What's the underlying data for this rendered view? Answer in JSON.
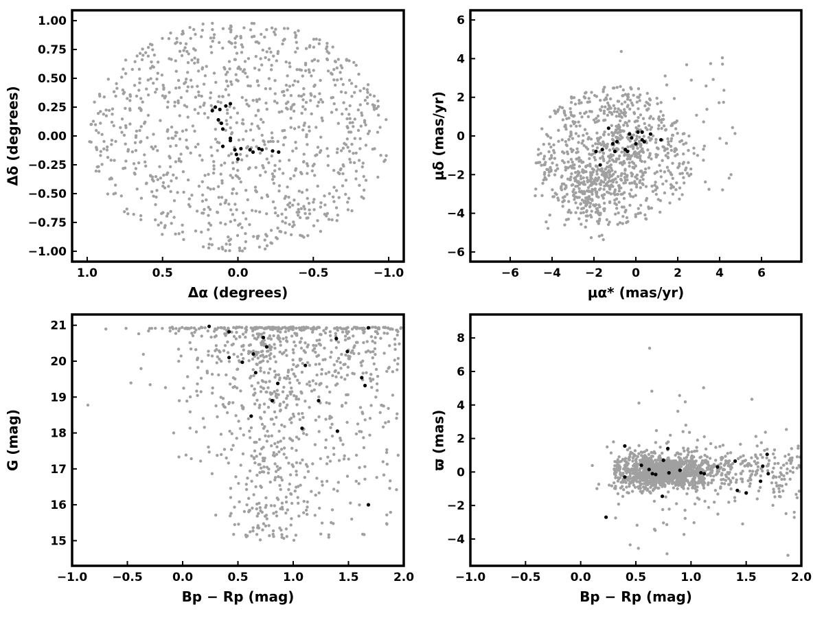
{
  "colors": {
    "field": "#a0a0a0",
    "members": "#000000",
    "frame": "#000000"
  },
  "chart_data": [
    {
      "id": "sky",
      "type": "scatter",
      "title": "",
      "xlabel": "Δα (degrees)",
      "ylabel": "Δδ (degrees)",
      "xlim": [
        1.1,
        -1.1
      ],
      "ylim": [
        -1.09,
        1.09
      ],
      "x_reversed": true,
      "xticks": [
        1.0,
        0.5,
        0.0,
        -0.5,
        -1.0
      ],
      "xtick_labels": [
        "1.0",
        "0.5",
        "0.0",
        "−0.5",
        "−1.0"
      ],
      "yticks": [
        -1.0,
        -0.75,
        -0.5,
        -0.25,
        0.0,
        0.25,
        0.5,
        0.75,
        1.0
      ],
      "ytick_labels": [
        "−1.00",
        "−0.75",
        "−0.50",
        "−0.25",
        "0.00",
        "0.25",
        "0.50",
        "0.75",
        "1.00"
      ],
      "grid": false,
      "field_distribution": {
        "shape": "disc",
        "center": [
          0,
          0
        ],
        "radius": 1.0,
        "approx_count": 1000
      },
      "members": [
        [
          0.17,
          0.22
        ],
        [
          0.15,
          0.25
        ],
        [
          0.12,
          0.23
        ],
        [
          0.08,
          0.26
        ],
        [
          0.05,
          0.28
        ],
        [
          0.13,
          0.14
        ],
        [
          0.11,
          0.11
        ],
        [
          0.1,
          0.06
        ],
        [
          0.1,
          -0.09
        ],
        [
          0.05,
          -0.02
        ],
        [
          0.05,
          -0.04
        ],
        [
          0.02,
          -0.12
        ],
        [
          0.01,
          -0.16
        ],
        [
          -0.02,
          -0.11
        ],
        [
          0.0,
          -0.2
        ],
        [
          -0.08,
          -0.12
        ],
        [
          -0.1,
          -0.14
        ],
        [
          -0.14,
          -0.11
        ],
        [
          -0.16,
          -0.12
        ],
        [
          -0.23,
          -0.13
        ],
        [
          -0.27,
          -0.14
        ]
      ]
    },
    {
      "id": "pm",
      "type": "scatter",
      "title": "",
      "xlabel": "μα* (mas/yr)",
      "ylabel": "μδ (mas/yr)",
      "xlim": [
        -7.9,
        7.9
      ],
      "ylim": [
        -6.5,
        6.5
      ],
      "xticks": [
        -6,
        -4,
        -2,
        0,
        2,
        4,
        6
      ],
      "xtick_labels": [
        "−6",
        "−4",
        "−2",
        "0",
        "2",
        "4",
        "6"
      ],
      "yticks": [
        -6,
        -4,
        -2,
        0,
        2,
        4,
        6
      ],
      "ytick_labels": [
        "−6",
        "−4",
        "−2",
        "0",
        "2",
        "4",
        "6"
      ],
      "grid": false,
      "field_distribution": {
        "shape": "disc-with-clump",
        "center": [
          -1.0,
          -1.0
        ],
        "radius": 3.8,
        "clump_center": [
          -2.0,
          -2.5
        ],
        "approx_count": 1000
      },
      "members": [
        [
          -1.9,
          -0.8
        ],
        [
          -1.6,
          -0.7
        ],
        [
          -1.7,
          -1.5
        ],
        [
          -1.1,
          -0.4
        ],
        [
          -1.0,
          -0.8
        ],
        [
          -0.9,
          -0.3
        ],
        [
          -0.5,
          -0.7
        ],
        [
          -0.3,
          0.1
        ],
        [
          -0.2,
          -0.1
        ],
        [
          0.1,
          0.2
        ],
        [
          0.3,
          -0.2
        ],
        [
          0.4,
          -0.3
        ],
        [
          0.3,
          0.2
        ],
        [
          0.7,
          0.1
        ],
        [
          1.2,
          -0.2
        ],
        [
          -0.4,
          -0.8
        ],
        [
          0.0,
          -0.4
        ],
        [
          -1.3,
          0.4
        ]
      ]
    },
    {
      "id": "cmd",
      "type": "scatter",
      "title": "",
      "xlabel": "Bp − Rp (mag)",
      "ylabel": "G (mag)",
      "xlim": [
        -1.0,
        2.0
      ],
      "ylim": [
        14.3,
        21.3
      ],
      "xticks": [
        -1.0,
        -0.5,
        0.0,
        0.5,
        1.0,
        1.5,
        2.0
      ],
      "xtick_labels": [
        "−1.0",
        "−0.5",
        "0.0",
        "0.5",
        "1.0",
        "1.5",
        "2.0"
      ],
      "yticks": [
        15,
        16,
        17,
        18,
        19,
        20,
        21
      ],
      "ytick_labels": [
        "15",
        "16",
        "17",
        "18",
        "19",
        "20",
        "21"
      ],
      "grid": false,
      "field_distribution": {
        "shape": "cmd-wedge",
        "approx_count": 1000
      },
      "members": [
        [
          0.24,
          20.97
        ],
        [
          0.42,
          20.82
        ],
        [
          0.42,
          20.1
        ],
        [
          0.54,
          19.97
        ],
        [
          0.64,
          20.2
        ],
        [
          0.66,
          19.68
        ],
        [
          0.73,
          20.66
        ],
        [
          0.76,
          20.4
        ],
        [
          0.81,
          18.9
        ],
        [
          0.86,
          19.38
        ],
        [
          0.62,
          18.47
        ],
        [
          1.11,
          19.88
        ],
        [
          1.23,
          18.9
        ],
        [
          1.08,
          18.13
        ],
        [
          1.39,
          20.63
        ],
        [
          1.49,
          20.27
        ],
        [
          1.4,
          18.05
        ],
        [
          1.62,
          19.54
        ],
        [
          1.65,
          19.32
        ],
        [
          1.68,
          20.93
        ],
        [
          1.68,
          16.0
        ]
      ]
    },
    {
      "id": "parallax",
      "type": "scatter",
      "title": "",
      "xlabel": "Bp − Rp (mag)",
      "ylabel": "ϖ (mas)",
      "xlim": [
        -1.0,
        2.0
      ],
      "ylim": [
        -5.6,
        9.4
      ],
      "xticks": [
        -1.0,
        -0.5,
        0.0,
        0.5,
        1.0,
        1.5,
        2.0
      ],
      "xtick_labels": [
        "−1.0",
        "−0.5",
        "0.0",
        "0.5",
        "1.0",
        "1.5",
        "2.0"
      ],
      "yticks": [
        -4,
        -2,
        0,
        2,
        4,
        6,
        8
      ],
      "ytick_labels": [
        "−4",
        "−2",
        "0",
        "2",
        "4",
        "6",
        "8"
      ],
      "grid": false,
      "field_distribution": {
        "shape": "horizontal-band",
        "center_y": 0.0,
        "approx_count": 1500
      },
      "members": [
        [
          0.23,
          -2.7
        ],
        [
          0.4,
          1.55
        ],
        [
          0.4,
          -0.3
        ],
        [
          0.55,
          0.4
        ],
        [
          0.62,
          0.15
        ],
        [
          0.65,
          -0.1
        ],
        [
          0.68,
          -0.15
        ],
        [
          0.74,
          -1.45
        ],
        [
          0.75,
          0.7
        ],
        [
          0.79,
          1.4
        ],
        [
          0.8,
          -0.05
        ],
        [
          0.9,
          0.1
        ],
        [
          1.09,
          -0.05
        ],
        [
          1.12,
          -0.1
        ],
        [
          1.24,
          0.3
        ],
        [
          1.4,
          0.65
        ],
        [
          1.42,
          -1.1
        ],
        [
          1.5,
          -1.25
        ],
        [
          1.63,
          -0.55
        ],
        [
          1.65,
          0.35
        ],
        [
          1.69,
          1.05
        ],
        [
          1.7,
          -0.1
        ]
      ]
    }
  ]
}
